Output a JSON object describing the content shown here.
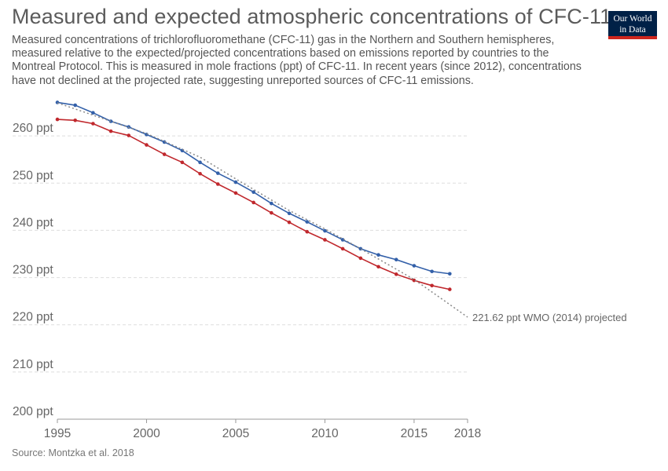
{
  "title": "Measured and expected atmospheric concentrations of CFC-11",
  "subtitle": "Measured concentrations of trichlorofluoromethane (CFC-11) gas in the Northern and Southern hemispheres, measured relative to the expected/projected concentrations based on emissions reported by countries to the Montreal Protocol. This is measured in mole fractions (ppt) of CFC-11. In recent years (since 2012), concentrations have not declined at the projected rate, suggesting unreported sources of CFC-11 emissions.",
  "logo": {
    "line1": "Our World",
    "line2": "in Data"
  },
  "source": "Source: Montzka et al. 2018",
  "chart_data": {
    "type": "line",
    "xlim": [
      1995,
      2018
    ],
    "ylim": [
      200,
      270
    ],
    "x_ticks": [
      {
        "value": 1995,
        "label": "1995"
      },
      {
        "value": 2000,
        "label": "2000"
      },
      {
        "value": 2005,
        "label": "2005"
      },
      {
        "value": 2010,
        "label": "2010"
      },
      {
        "value": 2015,
        "label": "2015"
      },
      {
        "value": 2018,
        "label": "2018"
      }
    ],
    "y_ticks": [
      {
        "value": 200,
        "label": "200 ppt"
      },
      {
        "value": 210,
        "label": "210 ppt"
      },
      {
        "value": 220,
        "label": "220 ppt"
      },
      {
        "value": 230,
        "label": "230 ppt"
      },
      {
        "value": 240,
        "label": "240 ppt"
      },
      {
        "value": 250,
        "label": "250 ppt"
      },
      {
        "value": 260,
        "label": "260 ppt"
      }
    ],
    "grid": true,
    "series": [
      {
        "color": "#3360a9",
        "style": "solid",
        "markers": true,
        "x": [
          1995,
          1996,
          1997,
          1998,
          1999,
          2000,
          2001,
          2002,
          2003,
          2004,
          2005,
          2006,
          2007,
          2008,
          2009,
          2010,
          2011,
          2012,
          2013,
          2014,
          2015,
          2016,
          2017
        ],
        "y": [
          267.1,
          266.5,
          264.9,
          263.1,
          261.9,
          260.3,
          258.7,
          256.9,
          254.4,
          252.1,
          250.2,
          248.1,
          245.7,
          243.6,
          241.8,
          239.9,
          238.0,
          236.1,
          234.8,
          233.8,
          232.5,
          231.3,
          230.8
        ]
      },
      {
        "color": "#c0282d",
        "style": "solid",
        "markers": true,
        "x": [
          1995,
          1996,
          1997,
          1998,
          1999,
          2000,
          2001,
          2002,
          2003,
          2004,
          2005,
          2006,
          2007,
          2008,
          2009,
          2010,
          2011,
          2012,
          2013,
          2014,
          2015,
          2016,
          2017
        ],
        "y": [
          263.5,
          263.3,
          262.6,
          261.0,
          260.1,
          258.1,
          256.1,
          254.4,
          252.0,
          249.8,
          247.9,
          245.9,
          243.7,
          241.7,
          239.7,
          238.0,
          236.1,
          234.1,
          232.3,
          230.7,
          229.4,
          228.3,
          227.5
        ]
      },
      {
        "name": "221.62 ppt WMO (2014) projected",
        "color": "#888888",
        "style": "dotted",
        "markers": false,
        "x": [
          1995,
          2000,
          2003,
          2005,
          2008,
          2010,
          2012,
          2015,
          2018
        ],
        "y": [
          267.0,
          260.5,
          255.5,
          250.9,
          244.2,
          240.3,
          236.1,
          229.6,
          221.62
        ]
      }
    ]
  }
}
